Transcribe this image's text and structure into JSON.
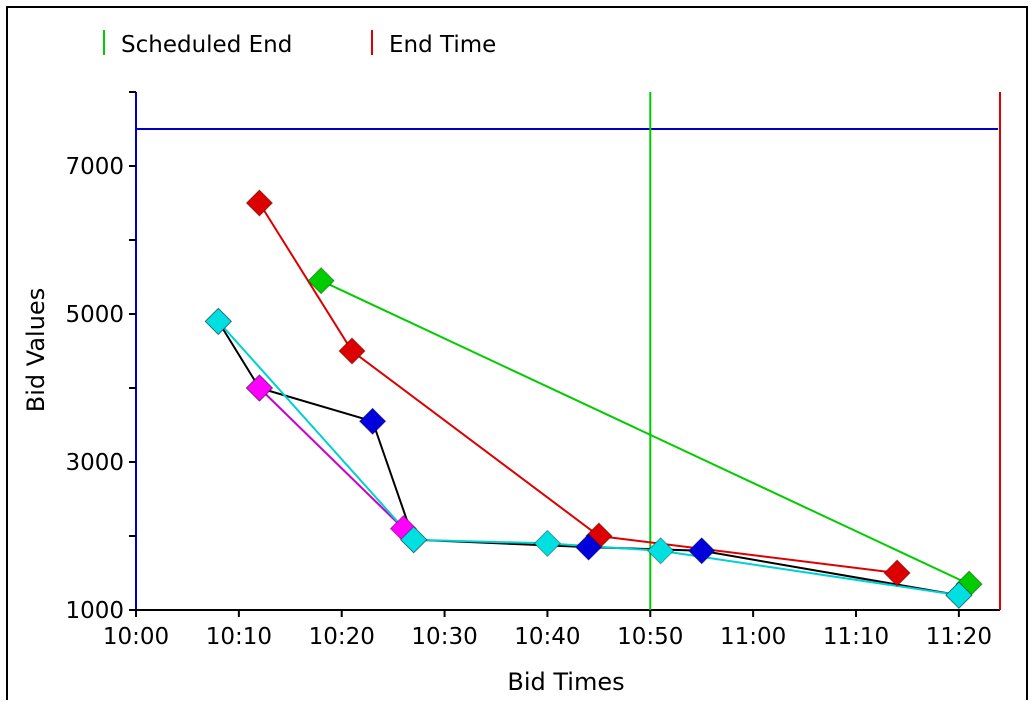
{
  "chart_data": {
    "type": "line",
    "xlabel": "Bid Times",
    "ylabel": "Bid Values",
    "x_ticks": [
      "10:00",
      "10:10",
      "10:20",
      "10:30",
      "10:40",
      "10:50",
      "11:00",
      "11:10",
      "11:20"
    ],
    "y_ticks": [
      1000,
      3000,
      5000,
      7000
    ],
    "xlim_minutes": [
      0,
      84
    ],
    "ylim": [
      1000,
      8000
    ],
    "legend_position": "top-left",
    "legend": [
      {
        "label": "Scheduled End",
        "color": "#00cc00"
      },
      {
        "label": "End Time",
        "color": "#dd0000"
      }
    ],
    "reference_lines": [
      {
        "orientation": "horizontal",
        "y": 7500,
        "color": "#0000c0"
      },
      {
        "orientation": "vertical",
        "x": "10:50",
        "legend": "Scheduled End",
        "color": "#00cc00"
      },
      {
        "orientation": "vertical",
        "x": "11:24",
        "legend": "End Time",
        "color": "#dd0000"
      }
    ],
    "series": [
      {
        "color": "#dd0000",
        "line_color": "#dd0000",
        "x": [
          "10:12",
          "10:21",
          "10:45",
          "11:14"
        ],
        "y": [
          6500,
          4500,
          2000,
          1500
        ]
      },
      {
        "color": "#00cc00",
        "line_color": "#00cc00",
        "x": [
          "10:18",
          "11:21"
        ],
        "y": [
          5450,
          1350
        ]
      },
      {
        "color": "#0000dd",
        "line_color": "#000000",
        "x": [
          "10:08",
          "10:12",
          "10:23",
          "10:27",
          "10:44",
          "10:55",
          "11:20"
        ],
        "y": [
          4900,
          4000,
          3550,
          1950,
          1850,
          1800,
          1200
        ]
      },
      {
        "color": "#ff00ff",
        "line_color": "#cc00cc",
        "x": [
          "10:12",
          "10:26"
        ],
        "y": [
          4000,
          2100
        ]
      },
      {
        "color": "#00e0e0",
        "line_color": "#00d0d0",
        "x": [
          "10:08",
          "10:27",
          "10:40",
          "10:51",
          "11:20"
        ],
        "y": [
          4900,
          1950,
          1900,
          1800,
          1200
        ]
      }
    ]
  }
}
